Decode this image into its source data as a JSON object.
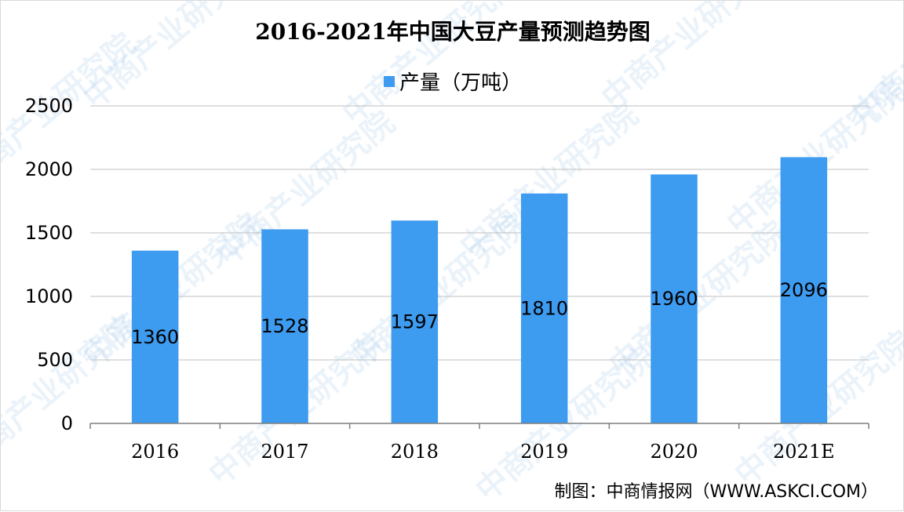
{
  "chart_data": {
    "type": "bar",
    "title": "2016-2021年中国大豆产量预测趋势图",
    "categories": [
      "2016",
      "2017",
      "2018",
      "2019",
      "2020",
      "2021E"
    ],
    "series": [
      {
        "name": "产量（万吨）",
        "values": [
          1360,
          1528,
          1597,
          1810,
          1960,
          2096
        ],
        "color": "#3d9bf0"
      }
    ],
    "data_labels": [
      "1360",
      "1528",
      "1597",
      "1810",
      "1960",
      "2096"
    ],
    "ylim": [
      0,
      2500
    ],
    "yticks": [
      0,
      500,
      1000,
      1500,
      2000,
      2500
    ],
    "grid": true,
    "legend_position": "top-center",
    "xlabel": "",
    "ylabel": ""
  },
  "source_note": "制图：中商情报网（WWW.ASKCI.COM）",
  "watermark_text": "中商产业研究院",
  "colors": {
    "bar": "#3d9bf0",
    "gridline": "#bfbfbf",
    "axis": "#7f7f7f"
  }
}
